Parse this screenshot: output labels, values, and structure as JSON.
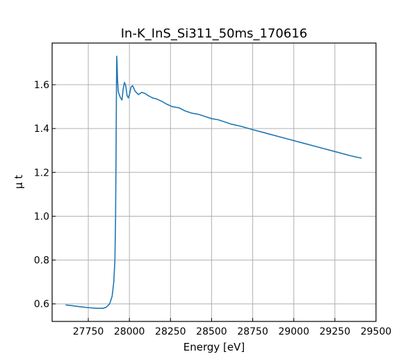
{
  "chart_data": {
    "type": "line",
    "title": "In-K_InS_Si311_50ms_170616",
    "xlabel": "Energy [eV]",
    "ylabel": "μ t",
    "xlim": [
      27530,
      29500
    ],
    "ylim": [
      0.52,
      1.79
    ],
    "x_ticks": [
      27750,
      28000,
      28250,
      28500,
      28750,
      29000,
      29250,
      29500
    ],
    "y_ticks": [
      0.6,
      0.8,
      1.0,
      1.2,
      1.4,
      1.6
    ],
    "x_tick_labels": [
      "27750",
      "28000",
      "28250",
      "28500",
      "28750",
      "29000",
      "29250",
      "29500"
    ],
    "y_tick_labels": [
      "0.6",
      "0.8",
      "1.0",
      "1.2",
      "1.4",
      "1.6"
    ],
    "grid": true,
    "colors": {
      "line": "#1f77b4",
      "grid": "#b0b0b0"
    },
    "series": [
      {
        "x": [
          27615,
          27650,
          27700,
          27750,
          27800,
          27840,
          27860,
          27880,
          27895,
          27905,
          27912,
          27916,
          27919,
          27921,
          27923,
          27925,
          27928,
          27932,
          27938,
          27946,
          27955,
          27962,
          27970,
          27978,
          27986,
          27994,
          28002,
          28010,
          28020,
          28035,
          28055,
          28075,
          28095,
          28115,
          28140,
          28165,
          28195,
          28230,
          28260,
          28300,
          28340,
          28380,
          28420,
          28460,
          28500,
          28540,
          28580,
          28620,
          28680,
          28750,
          28850,
          28950,
          29050,
          29150,
          29250,
          29350,
          29410
        ],
        "y": [
          0.595,
          0.592,
          0.587,
          0.583,
          0.58,
          0.58,
          0.585,
          0.6,
          0.635,
          0.7,
          0.8,
          1.0,
          1.3,
          1.55,
          1.73,
          1.7,
          1.62,
          1.57,
          1.555,
          1.54,
          1.53,
          1.58,
          1.61,
          1.595,
          1.55,
          1.54,
          1.56,
          1.59,
          1.595,
          1.57,
          1.555,
          1.565,
          1.56,
          1.55,
          1.54,
          1.535,
          1.525,
          1.51,
          1.5,
          1.495,
          1.48,
          1.47,
          1.465,
          1.455,
          1.445,
          1.44,
          1.43,
          1.42,
          1.41,
          1.395,
          1.375,
          1.355,
          1.335,
          1.315,
          1.295,
          1.275,
          1.265
        ]
      }
    ]
  }
}
